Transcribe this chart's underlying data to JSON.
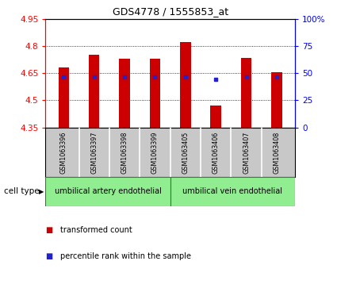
{
  "title": "GDS4778 / 1555853_at",
  "samples": [
    "GSM1063396",
    "GSM1063397",
    "GSM1063398",
    "GSM1063399",
    "GSM1063405",
    "GSM1063406",
    "GSM1063407",
    "GSM1063408"
  ],
  "transformed_counts": [
    4.68,
    4.75,
    4.73,
    4.73,
    4.82,
    4.47,
    4.735,
    4.655
  ],
  "percentile_ranks_y": [
    4.627,
    4.627,
    4.627,
    4.627,
    4.627,
    4.617,
    4.627,
    4.627
  ],
  "ylim_left": [
    4.35,
    4.95
  ],
  "yticks_left": [
    4.35,
    4.5,
    4.65,
    4.8,
    4.95
  ],
  "yticks_right_labels": [
    "0",
    "25",
    "50",
    "75",
    "100%"
  ],
  "yticks_right_vals": [
    0,
    25,
    50,
    75,
    100
  ],
  "bar_color": "#cc0000",
  "dot_color": "#2222cc",
  "bar_width": 0.35,
  "base_value": 4.35,
  "cell_type_labels": [
    "umbilical artery endothelial",
    "umbilical vein endothelial"
  ],
  "cell_type_color": "#90ee90",
  "bg_color": "#c8c8c8",
  "legend_red": "transformed count",
  "legend_blue": "percentile rank within the sample",
  "plot_bg": "#ffffff"
}
